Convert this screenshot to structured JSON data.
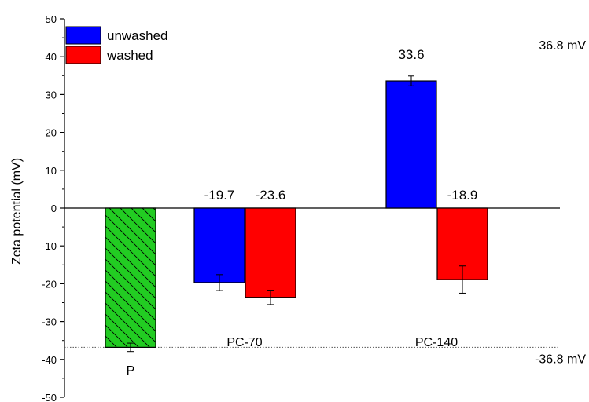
{
  "chart_data": {
    "type": "bar",
    "title": "",
    "ylabel": "Zeta potential (mV)",
    "xlabel": "",
    "ylim": [
      -50,
      50
    ],
    "y_ticks": [
      -50,
      -40,
      -30,
      -20,
      -10,
      0,
      10,
      20,
      30,
      40,
      50
    ],
    "grid": false,
    "legend": {
      "placement": "top-left",
      "entries": [
        {
          "label": "unwashed",
          "color": "#0000ff"
        },
        {
          "label": "washed",
          "color": "#ff0000"
        }
      ]
    },
    "bars": [
      {
        "category": "P",
        "series": "",
        "value": -36.8,
        "error": 1.1,
        "color": "#22cc22",
        "hatched": true,
        "label": ""
      },
      {
        "category": "PC-70",
        "series": "unwashed",
        "value": -19.7,
        "error": 2.1,
        "color": "#0000ff",
        "hatched": false,
        "label": "-19.7"
      },
      {
        "category": "PC-70",
        "series": "washed",
        "value": -23.6,
        "error": 1.9,
        "color": "#ff0000",
        "hatched": false,
        "label": "-23.6"
      },
      {
        "category": "PC-140",
        "series": "unwashed",
        "value": 33.6,
        "error": 1.3,
        "color": "#0000ff",
        "hatched": false,
        "label": "33.6"
      },
      {
        "category": "PC-140",
        "series": "washed",
        "value": -18.9,
        "error": 3.6,
        "color": "#ff0000",
        "hatched": false,
        "label": "-18.9"
      }
    ],
    "category_labels": [
      "P",
      "PC-70",
      "PC-140"
    ],
    "reference_lines": [
      {
        "value": -36.8,
        "style": "dotted",
        "label": "-36.8 mV"
      }
    ],
    "annotations": [
      {
        "text": "36.8 mV"
      }
    ]
  }
}
